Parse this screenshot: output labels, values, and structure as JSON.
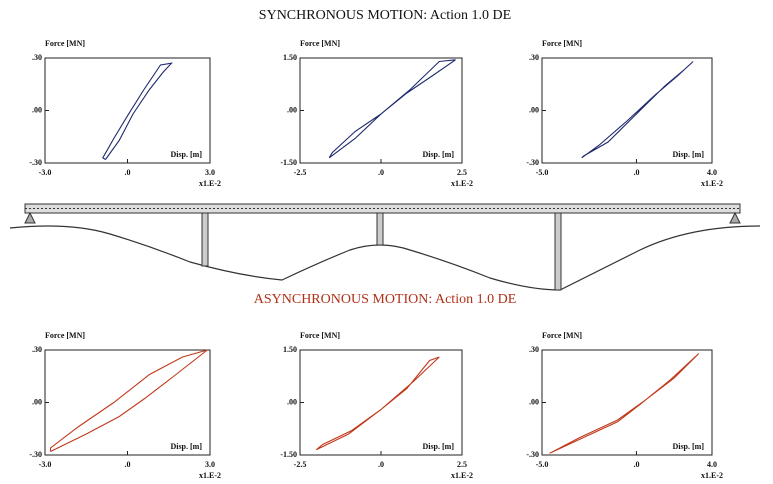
{
  "headings": [
    "SYNCHRONOUS MOTION: Action 1.0 DE",
    "ASYNCHRONOUS MOTION: Action 1.0 DE"
  ],
  "chart_data": [
    {
      "type": "line",
      "y_label": "Force [MN]",
      "x_label": "Disp. [m]",
      "x_multiplier_label": "x1.E-2",
      "color": "#1f2a6e",
      "xlim": [
        -3,
        3
      ],
      "ylim": [
        -0.3,
        0.3
      ],
      "xticks": [
        {
          "value": -3,
          "label": "-3.0"
        },
        {
          "value": 0,
          "label": ".0"
        },
        {
          "value": 3,
          "label": "3.0"
        }
      ],
      "yticks": [
        {
          "value": -0.3,
          "label": "-.30"
        },
        {
          "value": 0,
          "label": ".00"
        },
        {
          "value": 0.3,
          "label": ".30"
        }
      ],
      "x": [
        -0.8,
        -0.3,
        0.2,
        0.8,
        1.3,
        1.6,
        1.2,
        0.6,
        0.0,
        -0.5,
        -0.9,
        -0.8
      ],
      "values": [
        -0.28,
        -0.17,
        -0.02,
        0.12,
        0.22,
        0.27,
        0.26,
        0.12,
        -0.03,
        -0.16,
        -0.27,
        -0.28
      ]
    },
    {
      "type": "line",
      "y_label": "Force [MN]",
      "x_label": "Disp. [m]",
      "x_multiplier_label": "x1.E-2",
      "color": "#1f2a6e",
      "xlim": [
        -2.5,
        2.5
      ],
      "ylim": [
        -1.5,
        1.5
      ],
      "xticks": [
        -2.5,
        {
          "value": 0,
          "label": ".0"
        },
        2.5
      ],
      "yticks": [
        {
          "value": -1.5,
          "label": "-1.50"
        },
        {
          "value": 0,
          "label": ".00"
        },
        {
          "value": 1.5,
          "label": "1.50"
        }
      ],
      "x": [
        -1.6,
        -0.8,
        0,
        0.8,
        1.6,
        2.3,
        1.8,
        0.9,
        0,
        -0.8,
        -1.5,
        -1.6
      ],
      "values": [
        -1.35,
        -0.8,
        -0.1,
        0.5,
        1.0,
        1.45,
        1.4,
        0.6,
        -0.1,
        -0.6,
        -1.2,
        -1.35
      ]
    },
    {
      "type": "line",
      "y_label": "Force [MN]",
      "x_label": "Disp. [m]",
      "x_multiplier_label": "x1.E-2",
      "color": "#1f2a6e",
      "xlim": [
        -5,
        4
      ],
      "ylim": [
        -0.3,
        0.3
      ],
      "xticks": [
        {
          "value": -5,
          "label": "-5.0"
        },
        {
          "value": 0,
          "label": ".0"
        },
        {
          "value": 4,
          "label": "4.0"
        }
      ],
      "yticks": [
        {
          "value": -0.3,
          "label": "-.30"
        },
        {
          "value": 0,
          "label": ".00"
        },
        {
          "value": 0.3,
          "label": ".30"
        }
      ],
      "x": [
        -2.8,
        -1.5,
        0,
        1.5,
        2.6,
        3.0,
        2.2,
        1.0,
        -0.5,
        -2.0,
        -2.9,
        -2.8
      ],
      "values": [
        -0.26,
        -0.18,
        -0.02,
        0.14,
        0.24,
        0.28,
        0.2,
        0.09,
        -0.06,
        -0.2,
        -0.27,
        -0.26
      ]
    },
    {
      "type": "line",
      "y_label": "Force [MN]",
      "x_label": "Disp. [m]",
      "x_multiplier_label": "x1.E-2",
      "color": "#c0391b",
      "xlim": [
        -3,
        3
      ],
      "ylim": [
        -0.3,
        0.3
      ],
      "xticks": [
        {
          "value": -3,
          "label": "-3.0"
        },
        {
          "value": 0,
          "label": ".0"
        },
        {
          "value": 3,
          "label": "3.0"
        }
      ],
      "yticks": [
        {
          "value": -0.3,
          "label": "-.30"
        },
        {
          "value": 0,
          "label": ".00"
        },
        {
          "value": 0.3,
          "label": ".30"
        }
      ],
      "x": [
        -2.8,
        -1.5,
        -0.3,
        0.6,
        1.6,
        2.9,
        2.0,
        0.8,
        -0.5,
        -1.8,
        -2.8,
        -2.8
      ],
      "values": [
        -0.28,
        -0.18,
        -0.08,
        0.02,
        0.14,
        0.3,
        0.26,
        0.16,
        0.0,
        -0.14,
        -0.26,
        -0.28
      ]
    },
    {
      "type": "line",
      "y_label": "Force [MN]",
      "x_label": "Disp. [m]",
      "x_multiplier_label": "x1.E-2",
      "color": "#c0391b",
      "xlim": [
        -2.5,
        2.5
      ],
      "ylim": [
        -1.5,
        1.5
      ],
      "xticks": [
        -2.5,
        {
          "value": 0,
          "label": ".0"
        },
        2.5
      ],
      "yticks": [
        {
          "value": -1.5,
          "label": "-1.50"
        },
        {
          "value": 0,
          "label": ".00"
        },
        {
          "value": 1.5,
          "label": "1.50"
        }
      ],
      "x": [
        -2.0,
        -1.0,
        0,
        1.0,
        1.8,
        1.5,
        0.8,
        0,
        -0.9,
        -1.8,
        -2.0
      ],
      "values": [
        -1.35,
        -0.9,
        -0.2,
        0.6,
        1.3,
        1.2,
        0.4,
        -0.2,
        -0.8,
        -1.2,
        -1.35
      ]
    },
    {
      "type": "line",
      "y_label": "Force [MN]",
      "x_label": "Disp. [m]",
      "x_multiplier_label": "x1.E-2",
      "color": "#c0391b",
      "xlim": [
        -5,
        4
      ],
      "ylim": [
        -0.3,
        0.3
      ],
      "xticks": [
        {
          "value": -5,
          "label": "-5.0"
        },
        {
          "value": 0,
          "label": ".0"
        },
        {
          "value": 4,
          "label": "4.0"
        }
      ],
      "yticks": [
        {
          "value": -0.3,
          "label": "-.30"
        },
        {
          "value": 0,
          "label": ".00"
        },
        {
          "value": 0.3,
          "label": ".30"
        }
      ],
      "x": [
        -4.6,
        -3.0,
        -1.0,
        0.2,
        1.8,
        3.3,
        2.0,
        0.3,
        -1.0,
        -3.0,
        -4.6
      ],
      "values": [
        -0.29,
        -0.21,
        -0.11,
        -0.01,
        0.13,
        0.28,
        0.14,
        0.0,
        -0.1,
        -0.2,
        -0.29
      ]
    }
  ]
}
